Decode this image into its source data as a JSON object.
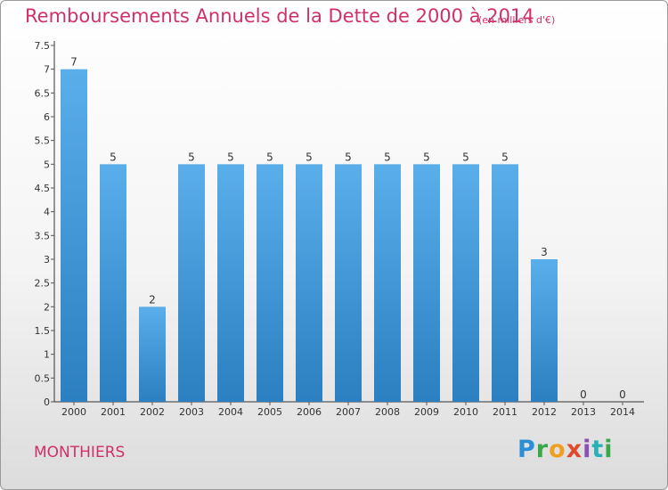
{
  "title": "Remboursements Annuels de la Dette de 2000 à 2014",
  "subtitle": "(en milliers d'€)",
  "commune": "MONTHIERS",
  "logo": {
    "text": "Proxiti",
    "letters": [
      "P",
      "r",
      "o",
      "x",
      "i",
      "t",
      "i"
    ]
  },
  "colors": {
    "title": "#d0306a",
    "bar_light": "#5aaeea",
    "bar_dark": "#2c7fc0",
    "axis": "#333333",
    "grid_tick": "#555555"
  },
  "chart_data": {
    "type": "bar",
    "categories": [
      "2000",
      "2001",
      "2002",
      "2003",
      "2004",
      "2005",
      "2006",
      "2007",
      "2008",
      "2009",
      "2010",
      "2011",
      "2012",
      "2013",
      "2014"
    ],
    "values": [
      7,
      5,
      2,
      5,
      5,
      5,
      5,
      5,
      5,
      5,
      5,
      5,
      3,
      0,
      0
    ],
    "data_labels": [
      "7",
      "5",
      "2",
      "5",
      "5",
      "5",
      "5",
      "5",
      "5",
      "5",
      "5",
      "5",
      "3",
      "0",
      "0"
    ],
    "y_ticks": [
      0,
      0.5,
      1,
      1.5,
      2,
      2.5,
      3,
      3.5,
      4,
      4.5,
      5,
      5.5,
      6,
      6.5,
      7,
      7.5
    ],
    "y_tick_labels": [
      "0",
      "0.5",
      "1",
      "1.5",
      "2",
      "2.5",
      "3",
      "3.5",
      "4",
      "4.5",
      "5",
      "5.5",
      "6",
      "6.5",
      "7",
      "7.5"
    ],
    "ylim": [
      0,
      7.5
    ],
    "title": "Remboursements Annuels de la Dette de 2000 à 2014",
    "subtitle": "(en milliers d'€)",
    "xlabel": "",
    "ylabel": "",
    "grid": false,
    "legend": "none"
  }
}
